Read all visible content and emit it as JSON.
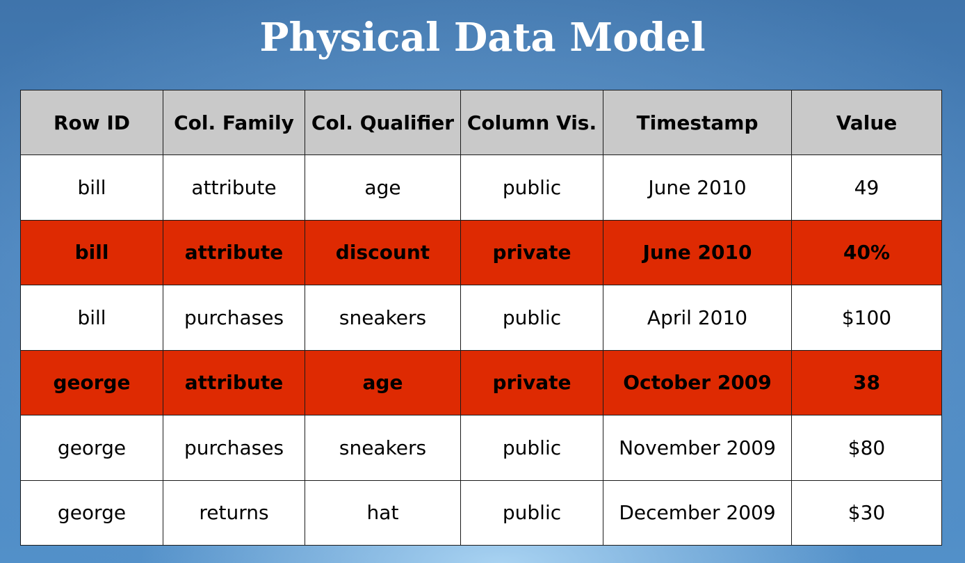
{
  "title": "Physical Data Model",
  "table": {
    "headers": [
      "Row ID",
      "Col. Family",
      "Col. Qualifier",
      "Column Vis.",
      "Timestamp",
      "Value"
    ],
    "rows": [
      {
        "cells": [
          "bill",
          "attribute",
          "age",
          "public",
          "June 2010",
          "49"
        ],
        "highlighted": false
      },
      {
        "cells": [
          "bill",
          "attribute",
          "discount",
          "private",
          "June 2010",
          "40%"
        ],
        "highlighted": true
      },
      {
        "cells": [
          "bill",
          "purchases",
          "sneakers",
          "public",
          "April 2010",
          "$100"
        ],
        "highlighted": false
      },
      {
        "cells": [
          "george",
          "attribute",
          "age",
          "private",
          "October 2009",
          "38"
        ],
        "highlighted": true
      },
      {
        "cells": [
          "george",
          "purchases",
          "sneakers",
          "public",
          "November 2009",
          "$80"
        ],
        "highlighted": false
      },
      {
        "cells": [
          "george",
          "returns",
          "hat",
          "public",
          "December 2009",
          "$30"
        ],
        "highlighted": false
      }
    ]
  },
  "colors": {
    "highlight_row": "#de2a02",
    "header_bg": "#c9c9c9",
    "background": "#4a83bd"
  }
}
